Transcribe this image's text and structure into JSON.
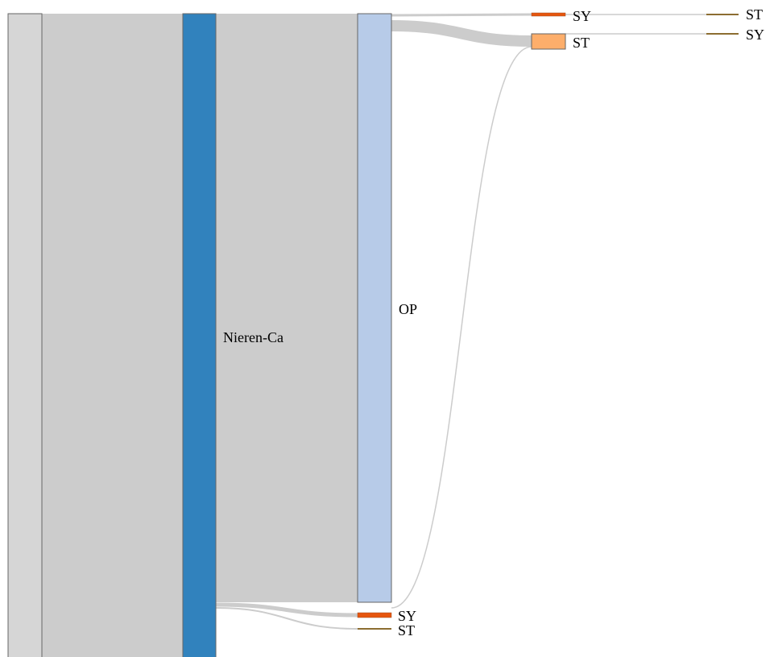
{
  "diagram": {
    "type": "sankey",
    "colors": {
      "link": "#cccccc",
      "root": "#d6d6d6",
      "nieren_ca": "#3182bd",
      "op": "#b7cbe8",
      "sy": "#e6550d",
      "st": "#fdae6b",
      "leaf": "#8c6d31"
    },
    "nodes": {
      "root": {
        "label": ""
      },
      "nieren_ca": {
        "label": "Nieren-Ca"
      },
      "op": {
        "label": "OP"
      },
      "op_sy": {
        "label": "SY"
      },
      "op_st": {
        "label": "ST"
      },
      "nc_sy": {
        "label": "SY"
      },
      "nc_st": {
        "label": "ST"
      },
      "sy_st": {
        "label": "ST"
      },
      "st_sy": {
        "label": "SY"
      }
    }
  }
}
